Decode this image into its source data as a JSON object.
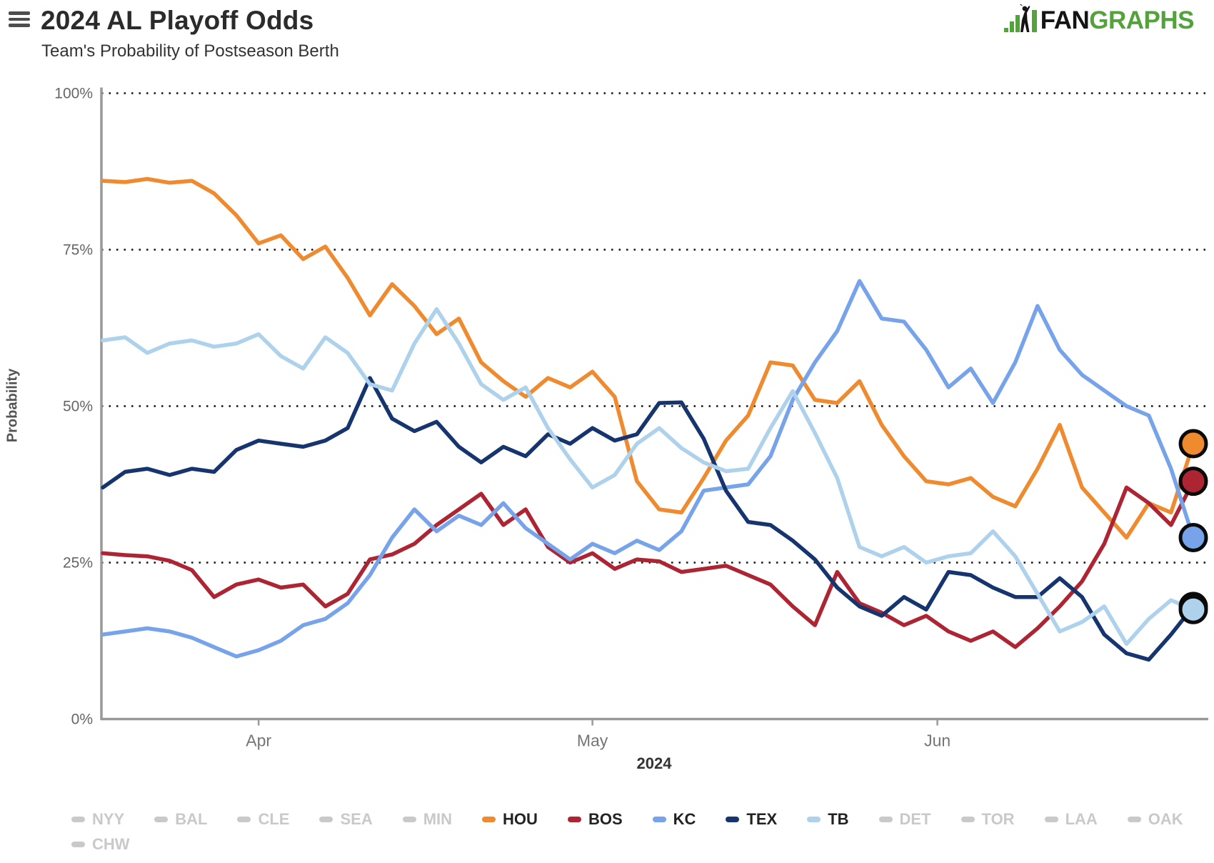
{
  "header": {
    "title": "2024 AL Playoff Odds",
    "subtitle": "Team's Probability of Postseason Berth"
  },
  "logo": {
    "fan": "FAN",
    "graphs": "GRAPHS",
    "green": "#53a23b",
    "dark": "#141414"
  },
  "colors": {
    "grid": "#111111",
    "axis": "#999999",
    "y_tick_text": "#666666",
    "x_tick_text": "#757575",
    "legend_inactive": "#c9c9c9",
    "legend_active_text": "#222222",
    "marker_stroke": "#0a0a0a"
  },
  "chart_data": {
    "type": "line",
    "title": "2024 AL Playoff Odds",
    "subtitle": "Team's Probability of Postseason Berth",
    "ylabel": "Probability",
    "xlabel": "2024",
    "ylim": [
      0,
      100
    ],
    "grid": "dotted horizontal lines at 25/50/75/100%",
    "legend_position": "bottom",
    "y_ticks": [
      {
        "value": 0,
        "label": "0%"
      },
      {
        "value": 25,
        "label": "25%"
      },
      {
        "value": 50,
        "label": "50%"
      },
      {
        "value": 75,
        "label": "75%"
      },
      {
        "value": 100,
        "label": "100%"
      }
    ],
    "x_ticks": [
      {
        "day": 14,
        "label": "Apr"
      },
      {
        "day": 44,
        "label": "May"
      },
      {
        "day": 75,
        "label": "Jun"
      }
    ],
    "x_domain_days": [
      0,
      98
    ],
    "days": [
      0,
      2,
      4,
      6,
      8,
      10,
      12,
      14,
      16,
      18,
      20,
      22,
      24,
      26,
      28,
      30,
      32,
      34,
      36,
      38,
      40,
      42,
      44,
      46,
      48,
      50,
      52,
      54,
      56,
      58,
      60,
      62,
      64,
      66,
      68,
      70,
      72,
      74,
      76,
      78,
      80,
      82,
      84,
      86,
      88,
      90,
      92,
      94,
      96,
      98
    ],
    "series": [
      {
        "name": "HOU",
        "color": "#ef8a2f",
        "end_value": 44,
        "values": [
          86,
          85.8,
          86.3,
          85.7,
          86,
          84,
          80.5,
          76,
          77.3,
          73.5,
          75.5,
          70.5,
          64.5,
          69.5,
          66,
          61.5,
          64,
          57,
          54,
          51.5,
          54.5,
          53,
          55.5,
          51.5,
          38,
          33.5,
          33,
          38.5,
          44.5,
          48.5,
          57,
          56.5,
          51,
          50.5,
          54,
          47,
          42,
          38,
          37.5,
          38.5,
          35.5,
          34,
          40,
          47,
          37,
          33,
          29,
          34.5,
          33,
          44
        ]
      },
      {
        "name": "BOS",
        "color": "#ad2433",
        "end_value": 38,
        "values": [
          26.5,
          26.2,
          26,
          25.3,
          23.8,
          19.5,
          21.5,
          22.3,
          21,
          21.5,
          18,
          20,
          25.5,
          26.3,
          28,
          31,
          33.5,
          36,
          31,
          33.5,
          27.5,
          25,
          26.5,
          24,
          25.5,
          25.2,
          23.5,
          24,
          24.5,
          23,
          21.5,
          18,
          15,
          23.5,
          18.5,
          17,
          15,
          16.5,
          14,
          12.5,
          14,
          11.5,
          14.5,
          18,
          22,
          28,
          37,
          34.5,
          31,
          38
        ]
      },
      {
        "name": "KC",
        "color": "#76a3e9",
        "end_value": 29,
        "values": [
          13.5,
          14,
          14.5,
          14,
          13,
          11.5,
          10,
          11,
          12.5,
          15,
          16,
          18.5,
          23,
          29,
          33.5,
          30,
          32.5,
          31,
          34.5,
          30.5,
          28,
          25.5,
          28,
          26.5,
          28.5,
          27,
          30,
          36.5,
          37,
          37.5,
          42,
          51,
          57,
          62,
          70,
          64,
          63.5,
          59,
          53,
          56,
          50.5,
          57,
          66,
          59,
          55,
          52.5,
          50,
          48.5,
          40,
          29
        ]
      },
      {
        "name": "TEX",
        "color": "#16356e",
        "end_value": 18,
        "values": [
          37,
          39.5,
          40,
          39,
          40,
          39.5,
          43,
          44.5,
          44,
          43.5,
          44.5,
          46.5,
          54.5,
          48,
          46,
          47.5,
          43.5,
          41,
          43.5,
          42,
          45.5,
          44,
          46.5,
          44.5,
          45.5,
          50.5,
          50.6,
          44.8,
          36.5,
          31.5,
          31,
          28.5,
          25.5,
          21,
          18,
          16.5,
          19.5,
          17.5,
          23.5,
          23,
          21,
          19.5,
          19.5,
          22.5,
          19.5,
          13.5,
          10.5,
          9.5,
          13.5,
          18
        ]
      },
      {
        "name": "TB",
        "color": "#aed2ec",
        "end_value": 17.5,
        "values": [
          60.5,
          61,
          58.5,
          60,
          60.5,
          59.5,
          60,
          61.5,
          58,
          56,
          61,
          58.5,
          53.5,
          52.5,
          60,
          65.5,
          60,
          53.5,
          51,
          53,
          46.5,
          41.5,
          37,
          39,
          44,
          46.5,
          43.3,
          41,
          39.6,
          40,
          46.5,
          52.4,
          45.7,
          38.5,
          27.5,
          26,
          27.5,
          25,
          26,
          26.5,
          30,
          26,
          20,
          14,
          15.5,
          18,
          12,
          16,
          19,
          17.5
        ]
      }
    ]
  },
  "legend": {
    "row1": [
      {
        "label": "NYY",
        "active": false
      },
      {
        "label": "BAL",
        "active": false
      },
      {
        "label": "CLE",
        "active": false
      },
      {
        "label": "SEA",
        "active": false
      },
      {
        "label": "MIN",
        "active": false
      },
      {
        "label": "HOU",
        "active": true,
        "color": "#ef8a2f"
      },
      {
        "label": "BOS",
        "active": true,
        "color": "#ad2433"
      },
      {
        "label": "KC",
        "active": true,
        "color": "#76a3e9"
      },
      {
        "label": "TEX",
        "active": true,
        "color": "#16356e"
      },
      {
        "label": "TB",
        "active": true,
        "color": "#aed2ec"
      },
      {
        "label": "DET",
        "active": false
      },
      {
        "label": "TOR",
        "active": false
      },
      {
        "label": "LAA",
        "active": false
      },
      {
        "label": "OAK",
        "active": false
      }
    ],
    "row2": [
      {
        "label": "CHW",
        "active": false
      }
    ]
  }
}
